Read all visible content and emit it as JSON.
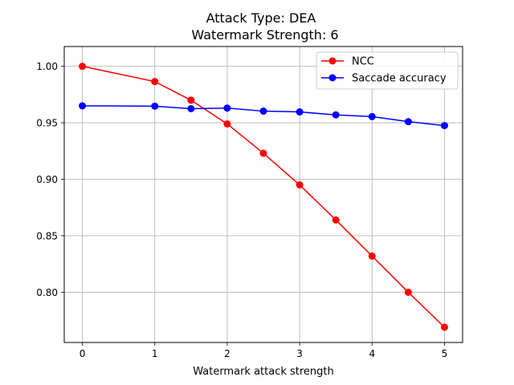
{
  "chart_data": {
    "type": "line",
    "title": "Attack Type: DEA",
    "subtitle": "Watermark Strength: 6",
    "xlabel": "Watermark attack strength",
    "ylabel": "",
    "xlim": [
      -0.25,
      5.25
    ],
    "ylim": [
      0.7555,
      1.0175
    ],
    "xticks": [
      0,
      1,
      2,
      3,
      4,
      5
    ],
    "xtick_labels": [
      "0",
      "1",
      "2",
      "3",
      "4",
      "5"
    ],
    "yticks": [
      0.8,
      0.85,
      0.9,
      0.95,
      1.0
    ],
    "ytick_labels": [
      "0.80",
      "0.85",
      "0.90",
      "0.95",
      "1.00"
    ],
    "grid": true,
    "legend_position": "top-right",
    "series": [
      {
        "name": "NCC",
        "color": "#ff0000",
        "x": [
          0,
          1,
          1.5,
          2,
          2.5,
          3,
          3.5,
          4,
          4.5,
          5
        ],
        "y": [
          1.0,
          0.9865,
          0.97,
          0.949,
          0.923,
          0.895,
          0.864,
          0.832,
          0.8,
          0.769
        ]
      },
      {
        "name": "Saccade accuracy",
        "color": "#0000ff",
        "x": [
          0,
          1,
          1.5,
          2,
          2.5,
          3,
          3.5,
          4,
          4.5,
          5
        ],
        "y": [
          0.965,
          0.9647,
          0.9625,
          0.963,
          0.9603,
          0.9596,
          0.957,
          0.9555,
          0.951,
          0.9475
        ]
      }
    ]
  }
}
